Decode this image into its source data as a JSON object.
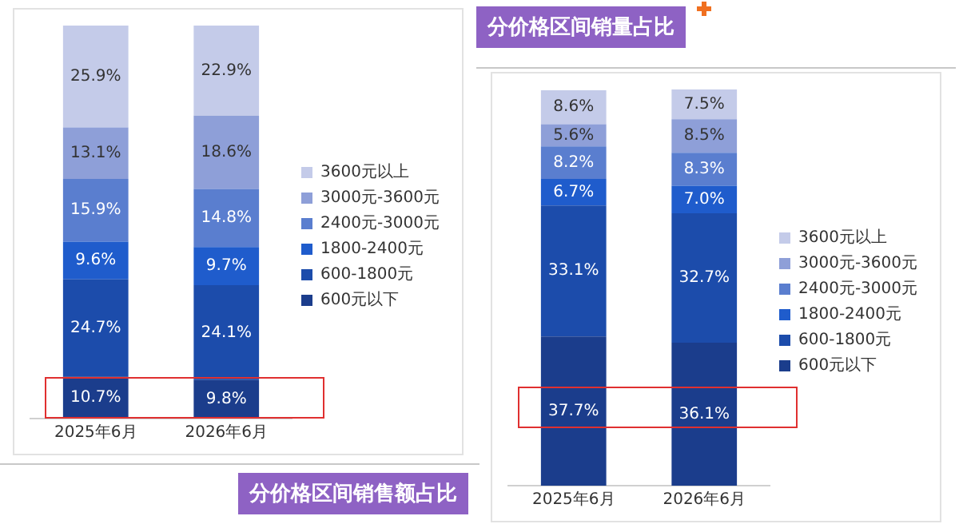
{
  "chart_data": [
    {
      "type": "bar",
      "title": "分价格区间销售额占比",
      "stacked": true,
      "tick_labels": "x",
      "grid": false,
      "legend": "right",
      "categories": [
        "2025年6月",
        "2026年6月"
      ],
      "series": [
        {
          "name": "600元以下",
          "color": "#1b3d8c",
          "values": [
            10.7,
            9.8
          ],
          "value_labels": [
            "10.7%",
            "9.8%"
          ]
        },
        {
          "name": "600-1800元",
          "color": "#1c4cab",
          "values": [
            24.7,
            24.1
          ],
          "value_labels": [
            "24.7%",
            "24.1%"
          ]
        },
        {
          "name": "1800-2400元",
          "color": "#1f5ccc",
          "values": [
            9.6,
            9.7
          ],
          "value_labels": [
            "9.6%",
            "9.7%"
          ]
        },
        {
          "name": "2400元-3000元",
          "color": "#5a7ecf",
          "values": [
            15.9,
            14.8
          ],
          "value_labels": [
            "15.9%",
            "14.8%"
          ]
        },
        {
          "name": "3000元-3600元",
          "color": "#8e9fd8",
          "values": [
            13.1,
            18.6
          ],
          "value_labels": [
            "13.1%",
            "18.6%"
          ]
        },
        {
          "name": "3600元以上",
          "color": "#c4cbe9",
          "values": [
            25.9,
            22.9
          ],
          "value_labels": [
            "25.9%",
            "22.9%"
          ]
        }
      ]
    },
    {
      "type": "bar",
      "title": "分价格区间销量占比",
      "stacked": true,
      "tick_labels": "x",
      "grid": false,
      "legend": "right",
      "categories": [
        "2025年6月",
        "2026年6月"
      ],
      "series": [
        {
          "name": "600元以下",
          "color": "#1b3d8c",
          "values": [
            37.7,
            36.1
          ],
          "value_labels": [
            "37.7%",
            "36.1%"
          ]
        },
        {
          "name": "600-1800元",
          "color": "#1c4cab",
          "values": [
            33.1,
            32.7
          ],
          "value_labels": [
            "33.1%",
            "32.7%"
          ]
        },
        {
          "name": "1800-2400元",
          "color": "#1f5ccc",
          "values": [
            6.7,
            7.0
          ],
          "value_labels": [
            "6.7%",
            "7.0%"
          ]
        },
        {
          "name": "2400元-3000元",
          "color": "#5a7ecf",
          "values": [
            8.2,
            8.3
          ],
          "value_labels": [
            "8.2%",
            "8.3%"
          ]
        },
        {
          "name": "3000元-3600元",
          "color": "#8e9fd8",
          "values": [
            5.6,
            8.5
          ],
          "value_labels": [
            "5.6%",
            "8.5%"
          ]
        },
        {
          "name": "3600元以上",
          "color": "#c4cbe9",
          "values": [
            8.6,
            7.5
          ],
          "value_labels": [
            "8.6%",
            "7.5%"
          ]
        }
      ]
    }
  ]
}
